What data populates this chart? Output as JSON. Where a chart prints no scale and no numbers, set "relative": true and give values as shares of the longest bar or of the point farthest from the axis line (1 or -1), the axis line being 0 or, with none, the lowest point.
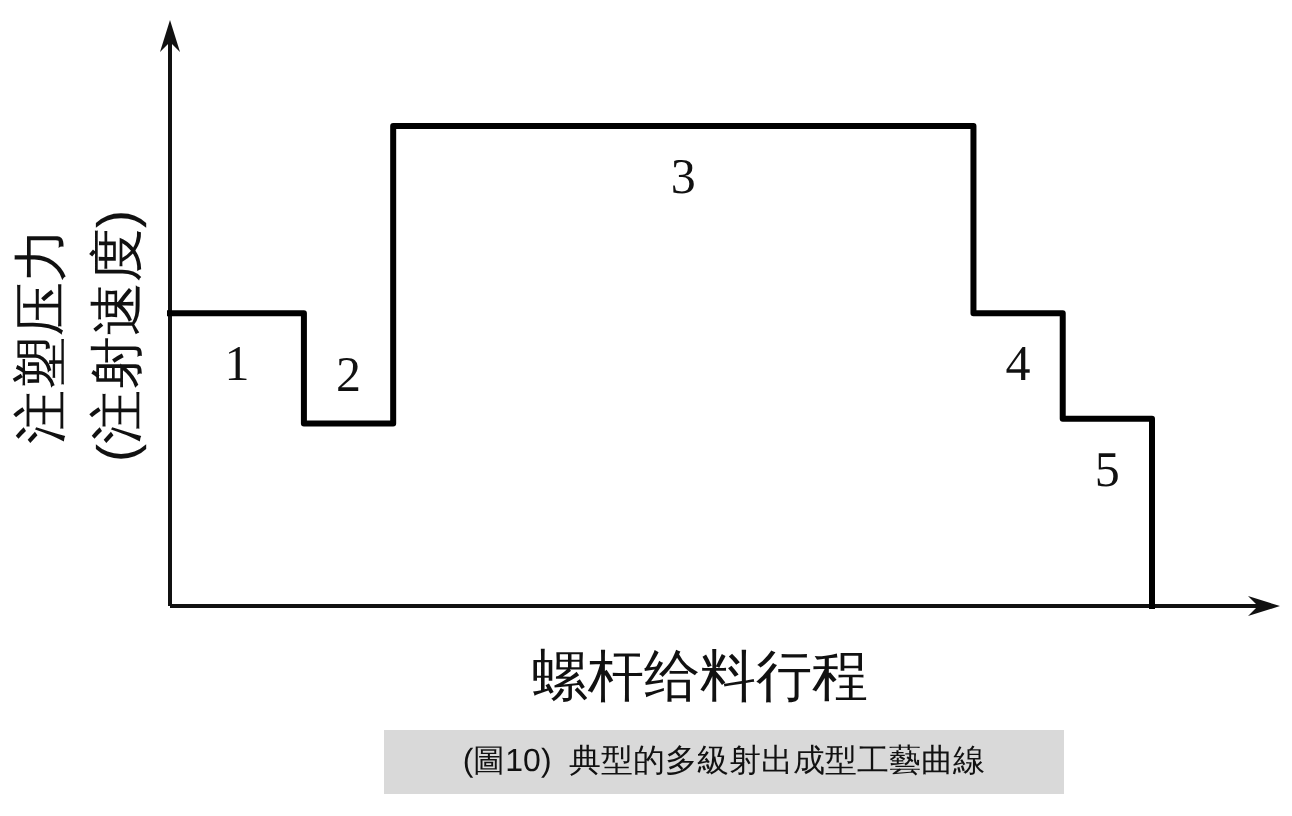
{
  "chart_data": {
    "type": "step",
    "relative": true,
    "xlabel": "螺杆给料行程",
    "ylabel": "注塑压力 (注射速度)",
    "categories": [
      null,
      null,
      null,
      null,
      null,
      null,
      null,
      null,
      null,
      null,
      null,
      null,
      null,
      null,
      null,
      null,
      null,
      null,
      null,
      null,
      null,
      null,
      null
    ],
    "values": [
      0.61,
      0.61,
      0.61,
      0.38,
      0.38,
      1,
      1,
      1,
      1,
      1,
      1,
      1,
      1,
      1,
      1,
      1,
      1,
      1,
      0.61,
      0.61,
      0.39,
      0.39,
      0
    ],
    "color": "#000000",
    "annotations": [
      "1",
      "2",
      "3",
      "4",
      "5",
      "(圖10)  典型的多級射出成型工藝曲線"
    ]
  }
}
